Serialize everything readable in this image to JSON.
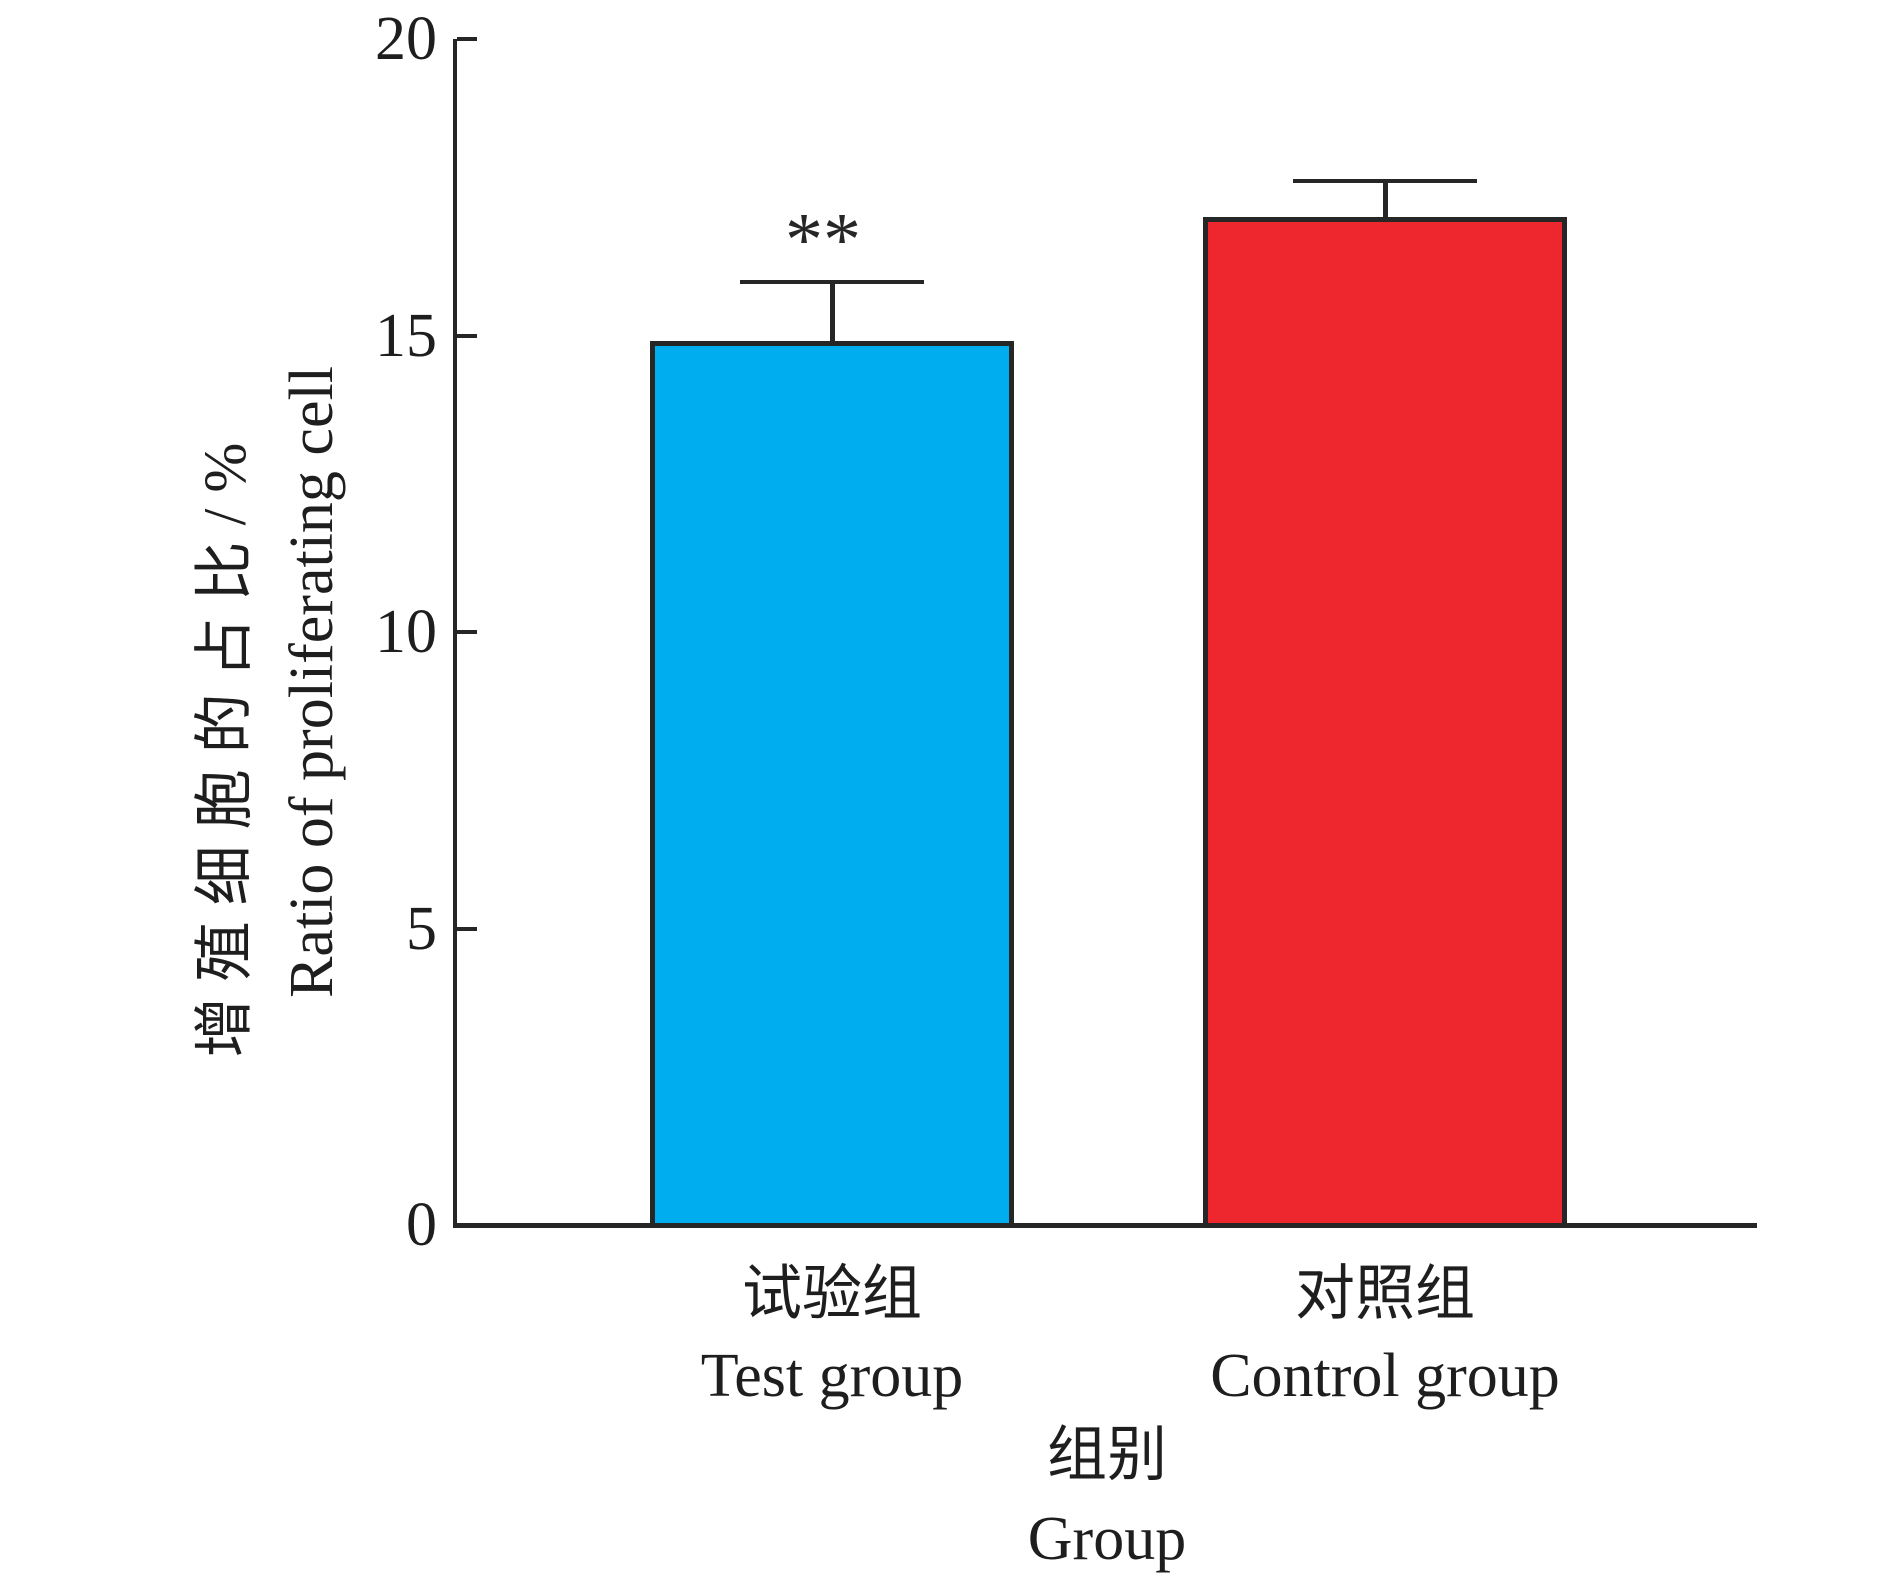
{
  "figure": {
    "background": "#ffffff",
    "axis_color": "#262626",
    "text_color": "#1e1e1e"
  },
  "chart_data": {
    "type": "bar",
    "title": "",
    "categories": [
      "试验组",
      "对照组"
    ],
    "categories_en": [
      "Test group",
      "Control group"
    ],
    "values": [
      14.9,
      17.0
    ],
    "errors_plus": [
      1.0,
      0.6
    ],
    "bar_colors": [
      "#00AEEF",
      "#EE262D"
    ],
    "annotations": [
      {
        "text": "**",
        "category_index": 0
      }
    ],
    "ylabel_zh": "增殖细胞的占比/%",
    "ylabel_en": "Ratio of proliferating cell",
    "xlabel_zh": "组别",
    "xlabel_en": "Group",
    "ylim": [
      0,
      20
    ],
    "yticks": [
      0,
      5,
      10,
      15,
      20
    ],
    "grid": false,
    "legend": "none",
    "error_bar_style": "upper-cap-only"
  }
}
